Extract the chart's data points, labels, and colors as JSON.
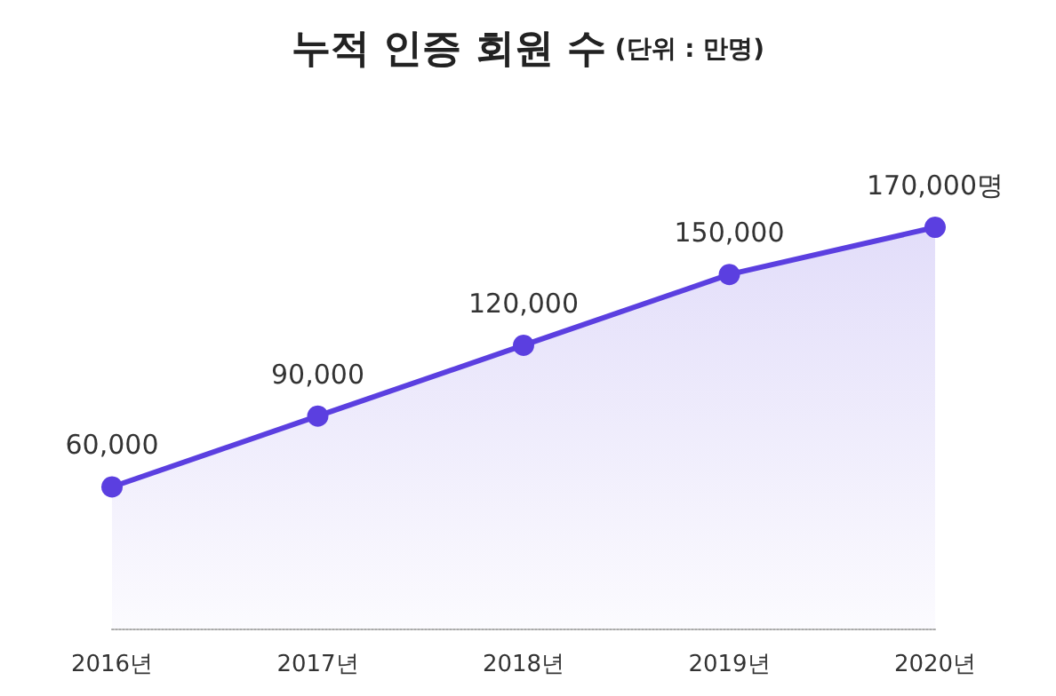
{
  "chart_data": {
    "type": "area",
    "title": "누적 인증 회원 수",
    "subtitle": "(단위 : 만명)",
    "categories": [
      "2016년",
      "2017년",
      "2018년",
      "2019년",
      "2020년"
    ],
    "values": [
      60000,
      90000,
      120000,
      150000,
      170000
    ],
    "value_labels": [
      "60,000",
      "90,000",
      "120,000",
      "150,000",
      "170,000명"
    ],
    "color": "#5b3fe0",
    "grid": false,
    "marker": "circle"
  }
}
